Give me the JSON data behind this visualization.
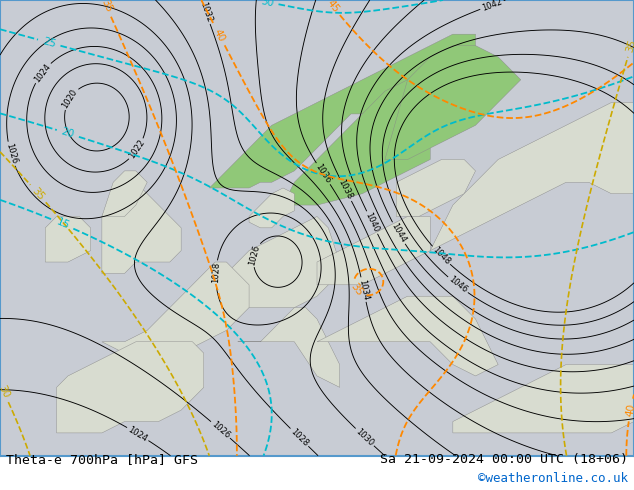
{
  "title_left": "Theta-e 700hPa [hPa] GFS",
  "title_right": "Sa 21-09-2024 00:00 UTC (18+06)",
  "copyright": "©weatheronline.co.uk",
  "bg_color": "#ffffff",
  "fig_width": 6.34,
  "fig_height": 4.9,
  "dpi": 100,
  "font_size_bottom": 9.5,
  "font_size_copyright": 9.0,
  "copyright_color": "#0066cc",
  "text_color": "#000000",
  "map_bg_color": "#c8ccd0",
  "sea_color": "#c8ccd4",
  "land_green_color": "#90c878",
  "land_light_color": "#d8dcd0",
  "contour_black": "#000000",
  "contour_cyan": "#00bbcc",
  "contour_orange": "#ff8800",
  "contour_yellow": "#ccaa00",
  "contour_green": "#88bb00",
  "border_color": "#5599cc",
  "label_size_black": 6.5,
  "label_size_colored": 7.5
}
